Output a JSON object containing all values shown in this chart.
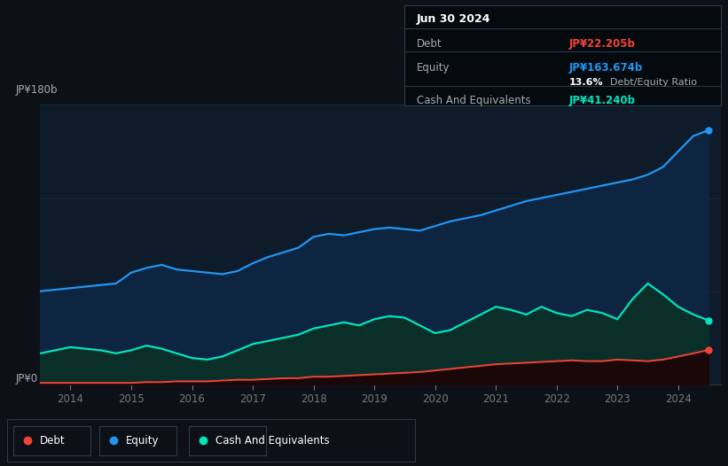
{
  "background_color": "#0d1117",
  "plot_bg_color": "#0d1b2a",
  "ylabel_top": "JP¥180b",
  "ylabel_bottom": "JP¥0",
  "x_years": [
    2013.5,
    2013.75,
    2014.0,
    2014.25,
    2014.5,
    2014.75,
    2015.0,
    2015.25,
    2015.5,
    2015.75,
    2016.0,
    2016.25,
    2016.5,
    2016.75,
    2017.0,
    2017.25,
    2017.5,
    2017.75,
    2018.0,
    2018.25,
    2018.5,
    2018.75,
    2019.0,
    2019.25,
    2019.5,
    2019.75,
    2020.0,
    2020.25,
    2020.5,
    2020.75,
    2021.0,
    2021.25,
    2021.5,
    2021.75,
    2022.0,
    2022.25,
    2022.5,
    2022.75,
    2023.0,
    2023.25,
    2023.5,
    2023.75,
    2024.0,
    2024.25,
    2024.5
  ],
  "equity_values": [
    60,
    61,
    62,
    63,
    64,
    65,
    72,
    75,
    77,
    74,
    73,
    72,
    71,
    73,
    78,
    82,
    85,
    88,
    95,
    97,
    96,
    98,
    100,
    101,
    100,
    99,
    102,
    105,
    107,
    109,
    112,
    115,
    118,
    120,
    122,
    124,
    126,
    128,
    130,
    132,
    135,
    140,
    150,
    160,
    163.674
  ],
  "debt_values": [
    1,
    1,
    1,
    1,
    1,
    1,
    1,
    1.5,
    1.5,
    2,
    2,
    2,
    2.5,
    3,
    3,
    3.5,
    4,
    4,
    5,
    5,
    5.5,
    6,
    6.5,
    7,
    7.5,
    8,
    9,
    10,
    11,
    12,
    13,
    13.5,
    14,
    14.5,
    15,
    15.5,
    15,
    15,
    16,
    15.5,
    15,
    16,
    18,
    20,
    22.205
  ],
  "cash_values": [
    20,
    22,
    24,
    23,
    22,
    20,
    22,
    25,
    23,
    20,
    17,
    16,
    18,
    22,
    26,
    28,
    30,
    32,
    36,
    38,
    40,
    38,
    42,
    44,
    43,
    38,
    33,
    35,
    40,
    45,
    50,
    48,
    45,
    50,
    46,
    44,
    48,
    46,
    42,
    55,
    65,
    58,
    50,
    45,
    41.24
  ],
  "equity_color": "#2196f3",
  "debt_color": "#f44336",
  "cash_color": "#00e5c0",
  "equity_fill": "#0d2540",
  "cash_fill": "#0a2e28",
  "debt_fill": "#1a0808",
  "tooltip_date": "Jun 30 2024",
  "tooltip_debt_label": "Debt",
  "tooltip_debt_value": "JP¥22.205b",
  "tooltip_debt_color": "#f44336",
  "tooltip_equity_label": "Equity",
  "tooltip_equity_value": "JP¥163.674b",
  "tooltip_equity_color": "#2196f3",
  "tooltip_ratio_label": "Debt/Equity Ratio",
  "tooltip_ratio_value": "13.6%",
  "tooltip_cash_label": "Cash And Equivalents",
  "tooltip_cash_value": "JP¥41.240b",
  "tooltip_cash_color": "#00e5c0",
  "x_tick_labels": [
    "2014",
    "2015",
    "2016",
    "2017",
    "2018",
    "2019",
    "2020",
    "2021",
    "2022",
    "2023",
    "2024"
  ],
  "x_tick_positions": [
    2014,
    2015,
    2016,
    2017,
    2018,
    2019,
    2020,
    2021,
    2022,
    2023,
    2024
  ],
  "ylim": [
    0,
    180
  ],
  "xlim": [
    2013.5,
    2024.7
  ],
  "grid_color": "#1e2d3d",
  "legend_items": [
    "Debt",
    "Equity",
    "Cash And Equivalents"
  ],
  "legend_colors": [
    "#f44336",
    "#2196f3",
    "#00e5c0"
  ]
}
